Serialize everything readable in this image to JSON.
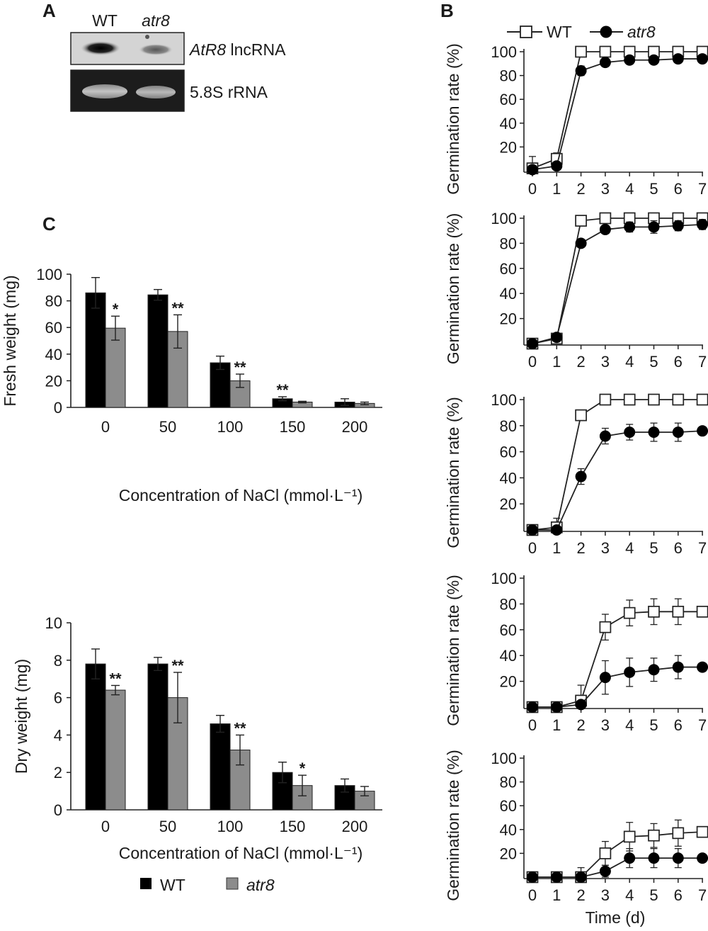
{
  "panel_a": {
    "letter": "A",
    "lanes": [
      "WT",
      "atr8"
    ],
    "rows": [
      {
        "name_italic": "AtR8",
        "name_rest": " lncRNA"
      },
      {
        "name_italic": "",
        "name_rest": "5.8S rRNA"
      }
    ]
  },
  "panel_b": {
    "letter": "B"
  },
  "panel_c": {
    "letter": "C"
  },
  "chart_data": [
    {
      "type": "bar",
      "panel": "C",
      "categories": [
        "0",
        "50",
        "100",
        "150",
        "200"
      ],
      "xlabel": "Concentration of NaCl (mmol·L⁻¹)",
      "ylabel": "Fresh weight (mg)",
      "ylim": [
        0,
        100
      ],
      "yticks": [
        "0",
        "20",
        "40",
        "60",
        "80",
        "100"
      ],
      "series": [
        {
          "name": "WT",
          "color": "#000000",
          "values": [
            86,
            84.5,
            33.5,
            6.5,
            4
          ],
          "errors": [
            11.5,
            4,
            5,
            1.5,
            2.5
          ],
          "stars": [
            "",
            "",
            "",
            "**",
            ""
          ]
        },
        {
          "name": "atr8",
          "color": "#8c8c8c",
          "values": [
            59.5,
            57,
            20,
            4,
            3
          ],
          "errors": [
            9,
            12.5,
            5,
            0.6,
            1
          ],
          "stars": [
            "*",
            "**",
            "**",
            "",
            ""
          ]
        }
      ]
    },
    {
      "type": "bar",
      "panel": "C",
      "categories": [
        "0",
        "50",
        "100",
        "150",
        "200"
      ],
      "xlabel": "Concentration of NaCl (mmol·L⁻¹)",
      "ylabel": "Dry weight (mg)",
      "ylim": [
        0,
        10
      ],
      "yticks": [
        "0",
        "2",
        "4",
        "6",
        "8",
        "10"
      ],
      "series": [
        {
          "name": "WT",
          "color": "#000000",
          "values": [
            7.8,
            7.8,
            4.6,
            2.0,
            1.3
          ],
          "errors": [
            0.8,
            0.35,
            0.45,
            0.55,
            0.35
          ],
          "stars": [
            "",
            "",
            "",
            "",
            ""
          ]
        },
        {
          "name": "atr8",
          "color": "#8c8c8c",
          "values": [
            6.4,
            6.0,
            3.2,
            1.3,
            1.0
          ],
          "errors": [
            0.25,
            1.35,
            0.8,
            0.55,
            0.25
          ],
          "stars": [
            "**",
            "**",
            "**",
            "*",
            ""
          ]
        }
      ]
    },
    {
      "type": "line",
      "panel": "B",
      "x": [
        0,
        1,
        2,
        3,
        4,
        5,
        6,
        7
      ],
      "ylabel": "Germination rate (%)",
      "xlabel": "",
      "yticks": [
        "20",
        "40",
        "60",
        "80",
        "100"
      ],
      "xticks": [
        "0",
        "1",
        "2",
        "3",
        "4",
        "5",
        "6",
        "7"
      ],
      "series": [
        {
          "name": "WT",
          "values": [
            2,
            10,
            100,
            100,
            100,
            100,
            100,
            100
          ],
          "errors": [
            10,
            5,
            0,
            0,
            0,
            0,
            0,
            0
          ]
        },
        {
          "name": "atr8",
          "values": [
            1,
            4,
            84,
            91,
            93,
            93,
            94,
            94
          ],
          "errors": [
            2,
            3,
            4,
            3,
            3,
            3,
            3,
            3
          ]
        }
      ]
    },
    {
      "type": "line",
      "panel": "B",
      "x": [
        0,
        1,
        2,
        3,
        4,
        5,
        6,
        7
      ],
      "ylabel": "Germination rate (%)",
      "xlabel": "",
      "yticks": [
        "20",
        "40",
        "60",
        "80",
        "100"
      ],
      "xticks": [
        "0",
        "1",
        "2",
        "3",
        "4",
        "5",
        "6",
        "7"
      ],
      "series": [
        {
          "name": "WT",
          "values": [
            0,
            4,
            98,
            100,
            100,
            100,
            100,
            100
          ],
          "errors": [
            0,
            2,
            1,
            0,
            0,
            0,
            0,
            0
          ]
        },
        {
          "name": "atr8",
          "values": [
            0,
            5,
            80,
            91,
            93,
            93,
            94,
            95
          ],
          "errors": [
            0,
            2,
            2,
            3,
            4,
            5,
            4,
            4
          ]
        }
      ]
    },
    {
      "type": "line",
      "panel": "B",
      "x": [
        0,
        1,
        2,
        3,
        4,
        5,
        6,
        7
      ],
      "ylabel": "Germination rate (%)",
      "xlabel": "",
      "yticks": [
        "20",
        "40",
        "60",
        "80",
        "100"
      ],
      "xticks": [
        "0",
        "1",
        "2",
        "3",
        "4",
        "5",
        "6",
        "7"
      ],
      "series": [
        {
          "name": "WT",
          "values": [
            0,
            2,
            88,
            100,
            100,
            100,
            100,
            100
          ],
          "errors": [
            0,
            7,
            2,
            0,
            0,
            0,
            0,
            0
          ]
        },
        {
          "name": "atr8",
          "values": [
            0,
            0,
            41,
            72,
            75,
            75,
            75,
            76
          ],
          "errors": [
            0,
            2,
            6,
            6,
            6,
            7,
            7,
            3
          ]
        }
      ]
    },
    {
      "type": "line",
      "panel": "B",
      "x": [
        0,
        1,
        2,
        3,
        4,
        5,
        6,
        7
      ],
      "ylabel": "Germination rate (%)",
      "xlabel": "",
      "yticks": [
        "20",
        "40",
        "60",
        "80",
        "100"
      ],
      "xticks": [
        "0",
        "1",
        "2",
        "3",
        "4",
        "5",
        "6",
        "7"
      ],
      "series": [
        {
          "name": "WT",
          "values": [
            0,
            0,
            5,
            62,
            73,
            74,
            74,
            74
          ],
          "errors": [
            0,
            0,
            12,
            10,
            10,
            10,
            10,
            3
          ]
        },
        {
          "name": "atr8",
          "values": [
            0,
            0,
            2,
            23,
            27,
            29,
            31,
            31
          ],
          "errors": [
            0,
            0,
            2,
            13,
            11,
            9,
            9,
            3
          ]
        }
      ]
    },
    {
      "type": "line",
      "panel": "B",
      "x": [
        0,
        1,
        2,
        3,
        4,
        5,
        6,
        7
      ],
      "ylabel": "Germination rate (%)",
      "xlabel": "Time (d)",
      "yticks": [
        "20",
        "40",
        "60",
        "80",
        "100"
      ],
      "xticks": [
        "0",
        "1",
        "2",
        "3",
        "4",
        "5",
        "6",
        "7"
      ],
      "series": [
        {
          "name": "WT",
          "values": [
            0,
            0,
            0,
            20,
            34,
            35,
            37,
            38
          ],
          "errors": [
            0,
            0,
            8,
            10,
            12,
            10,
            11,
            2
          ]
        },
        {
          "name": "atr8",
          "values": [
            0,
            0,
            0,
            5,
            16,
            16,
            16,
            16
          ],
          "errors": [
            0,
            0,
            0,
            5,
            8,
            8,
            8,
            2
          ]
        }
      ]
    }
  ],
  "legend_b": {
    "wt": "WT",
    "atr8": "atr8"
  },
  "legend_c": {
    "wt": "WT",
    "atr8": "atr8"
  }
}
